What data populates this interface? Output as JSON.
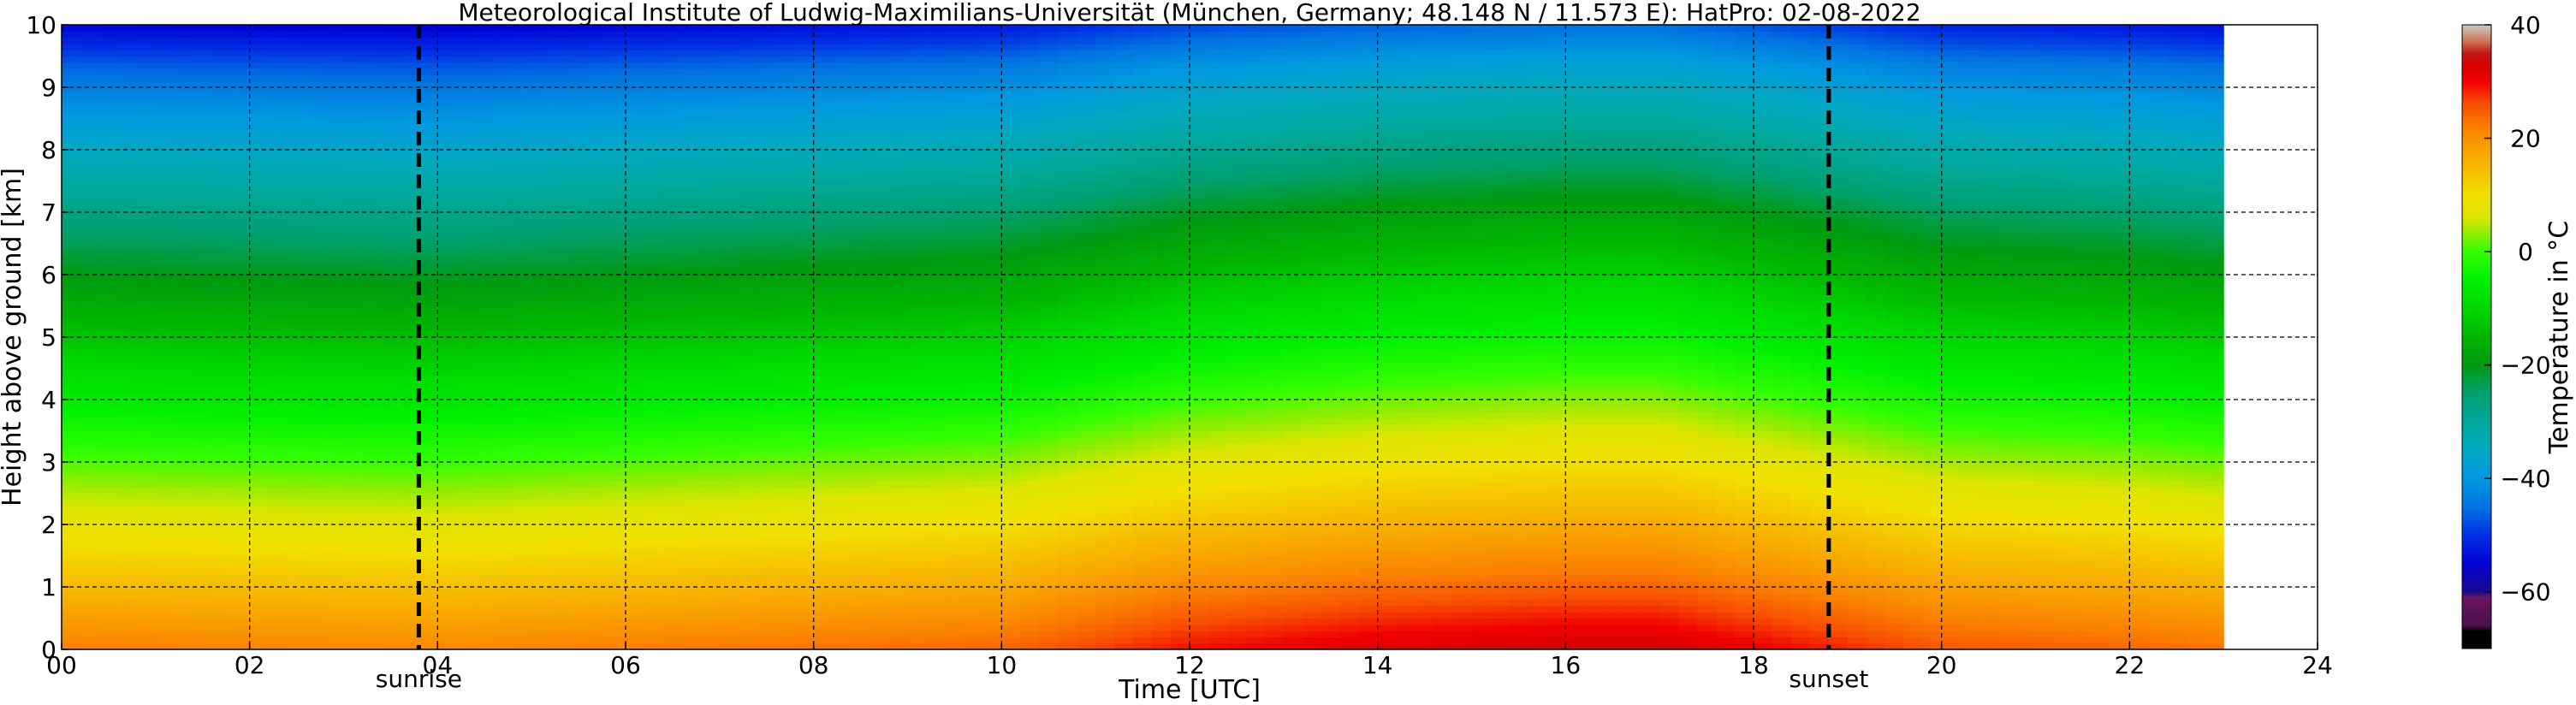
{
  "chart_data": {
    "type": "heatmap",
    "title": "Meteorological Institute of Ludwig-Maximilians-Universität (München, Germany; 48.148 N / 11.573 E):    HatPro: 02-08-2022",
    "xlabel": "Time [UTC]",
    "ylabel": "Height above ground [km]",
    "xlim": [
      0,
      24
    ],
    "ylim": [
      0,
      10
    ],
    "data_xlim": [
      0,
      23
    ],
    "x_ticks": [
      0,
      2,
      4,
      6,
      8,
      10,
      12,
      14,
      16,
      18,
      20,
      22,
      24
    ],
    "x_tick_labels": [
      "00",
      "02",
      "04",
      "06",
      "08",
      "10",
      "12",
      "14",
      "16",
      "18",
      "20",
      "22",
      "24"
    ],
    "y_ticks": [
      0,
      1,
      2,
      3,
      4,
      5,
      6,
      7,
      8,
      9,
      10
    ],
    "y_tick_labels": [
      "0",
      "1",
      "2",
      "3",
      "4",
      "5",
      "6",
      "7",
      "8",
      "9",
      "10"
    ],
    "grid": true,
    "markers": [
      {
        "label": "sunrise",
        "x": 3.8
      },
      {
        "label": "sunset",
        "x": 18.8
      }
    ],
    "colorbar": {
      "label": "Temperature in $^\\circ$C",
      "range": [
        -70,
        40
      ],
      "ticks": [
        40,
        20,
        0,
        -20,
        -40,
        -60
      ],
      "tick_labels": [
        "40",
        "20",
        "0",
        "−20",
        "−40",
        "−60"
      ],
      "colormap": [
        [
          -70,
          "#000000"
        ],
        [
          -67,
          "#000000"
        ],
        [
          -66,
          "#4a0f4a"
        ],
        [
          -61,
          "#6a1560"
        ],
        [
          -60,
          "#1a0a8e"
        ],
        [
          -55,
          "#0000d5"
        ],
        [
          -50,
          "#0030e5"
        ],
        [
          -45,
          "#0074e0"
        ],
        [
          -40,
          "#0098e0"
        ],
        [
          -35,
          "#00a8c0"
        ],
        [
          -30,
          "#00a89a"
        ],
        [
          -25,
          "#00a070"
        ],
        [
          -20,
          "#009a10"
        ],
        [
          -15,
          "#00b500"
        ],
        [
          -10,
          "#00d800"
        ],
        [
          -5,
          "#00f000"
        ],
        [
          0,
          "#33ff00"
        ],
        [
          3,
          "#8aee00"
        ],
        [
          6,
          "#dde500"
        ],
        [
          10,
          "#f2e000"
        ],
        [
          14,
          "#f6c000"
        ],
        [
          18,
          "#f9a200"
        ],
        [
          22,
          "#fa7f00"
        ],
        [
          26,
          "#f84e00"
        ],
        [
          30,
          "#f00000"
        ],
        [
          33,
          "#d60000"
        ],
        [
          35,
          "#c01818"
        ],
        [
          37,
          "#d07050"
        ],
        [
          39,
          "#c9b09f"
        ],
        [
          40,
          "#c8c8c8"
        ]
      ]
    },
    "temperature_profile": {
      "time_breakpoints_utc": [
        0,
        4,
        8,
        10,
        12,
        14,
        16,
        17,
        18,
        19,
        20,
        22,
        23
      ],
      "surface_temperature_c": [
        22,
        21,
        23,
        24,
        28,
        30,
        31,
        31,
        29,
        27,
        25,
        24,
        23
      ],
      "lapse_rate_c_per_km": -7.0,
      "note_upper": "near -55 C at 10 km"
    }
  }
}
